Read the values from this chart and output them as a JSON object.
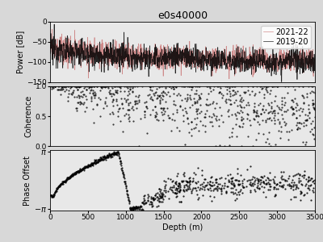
{
  "title": "e0s40000",
  "legend_labels": [
    "2019-20",
    "2021-22"
  ],
  "legend_colors": [
    "black",
    "#cd8080"
  ],
  "x_min": 0,
  "x_max": 3500,
  "power_ylim": [
    -150,
    0
  ],
  "power_yticks": [
    0,
    -50,
    -100,
    -150
  ],
  "power_ylabel": "Power [dB]",
  "coherence_ylim": [
    0.0,
    1.0
  ],
  "coherence_yticks": [
    0.0,
    0.5,
    1.0
  ],
  "coherence_ylabel": "Coherence",
  "phase_ylabel": "Phase Offset",
  "xlabel": "Depth (m)",
  "xticks": [
    0,
    500,
    1000,
    1500,
    2000,
    2500,
    3000,
    3500
  ],
  "bg_color": "#d8d8d8",
  "line1_color": "black",
  "line2_color": "#cd8080",
  "scatter_color": "black",
  "scatter_size": 2.5,
  "title_fontsize": 9,
  "axis_fontsize": 7,
  "tick_fontsize": 6.5,
  "legend_fontsize": 7
}
